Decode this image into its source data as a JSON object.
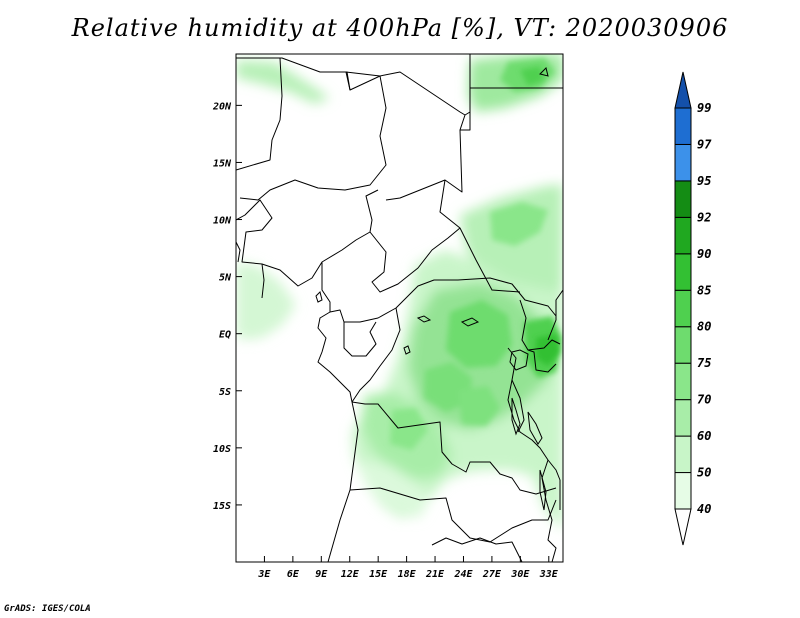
{
  "title": "Relative humidity at 400hPa [%], VT: 2020030906",
  "credit": "GrADS: IGES/COLA",
  "map": {
    "lon_range": [
      0,
      34.5
    ],
    "lat_range": [
      -20,
      24.5
    ],
    "x_ticks": [
      {
        "lon": 3,
        "label": "3E"
      },
      {
        "lon": 6,
        "label": "6E"
      },
      {
        "lon": 9,
        "label": "9E"
      },
      {
        "lon": 12,
        "label": "12E"
      },
      {
        "lon": 15,
        "label": "15E"
      },
      {
        "lon": 18,
        "label": "18E"
      },
      {
        "lon": 21,
        "label": "21E"
      },
      {
        "lon": 24,
        "label": "24E"
      },
      {
        "lon": 27,
        "label": "27E"
      },
      {
        "lon": 30,
        "label": "30E"
      },
      {
        "lon": 33,
        "label": "33E"
      }
    ],
    "y_ticks": [
      {
        "lat": 20,
        "label": "20N"
      },
      {
        "lat": 15,
        "label": "15N"
      },
      {
        "lat": 10,
        "label": "10N"
      },
      {
        "lat": 5,
        "label": "5N"
      },
      {
        "lat": 0,
        "label": "EQ"
      },
      {
        "lat": -5,
        "label": "5S"
      },
      {
        "lat": -10,
        "label": "10S"
      },
      {
        "lat": -15,
        "label": "15S"
      }
    ]
  },
  "colorbar": {
    "levels": [
      "40",
      "50",
      "60",
      "70",
      "75",
      "80",
      "85",
      "90",
      "92",
      "95",
      "97",
      "99"
    ],
    "colors": [
      "#ffffff",
      "#e6fce6",
      "#c8f5c8",
      "#a8eda8",
      "#8ae68a",
      "#6edc6e",
      "#4fd04f",
      "#33c033",
      "#20a820",
      "#148c14",
      "#3c91ea",
      "#1e6ed2",
      "#1450aa"
    ]
  }
}
